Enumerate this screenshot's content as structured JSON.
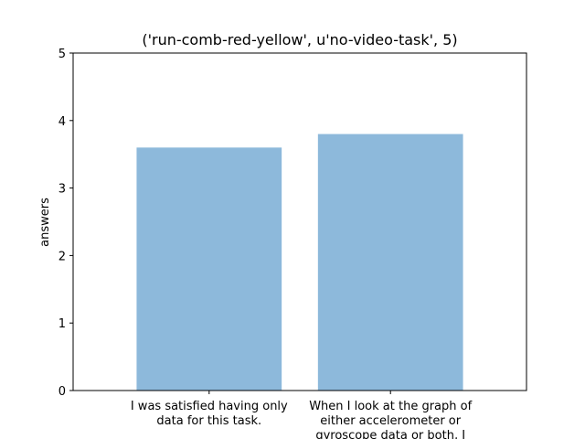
{
  "chart_data": {
    "type": "bar",
    "title": "('run-comb-red-yellow', u'no-video-task', 5)",
    "xlabel": "",
    "ylabel": "answers",
    "ylim": [
      0,
      5
    ],
    "yticks": [
      0,
      1,
      2,
      3,
      4,
      5
    ],
    "categories": [
      "I was satisfied having only data for this task.",
      "When I look at the graph of either accelerometer or gyroscope data or both, I"
    ],
    "category_lines": [
      [
        "I was satisfied having only",
        "data for this task."
      ],
      [
        "When I look at the graph of",
        "either accelerometer or",
        "gyroscope data or both, I"
      ]
    ],
    "values": [
      3.6,
      3.8
    ],
    "bar_color": "#8db9db",
    "grid": false,
    "legend": "none"
  }
}
